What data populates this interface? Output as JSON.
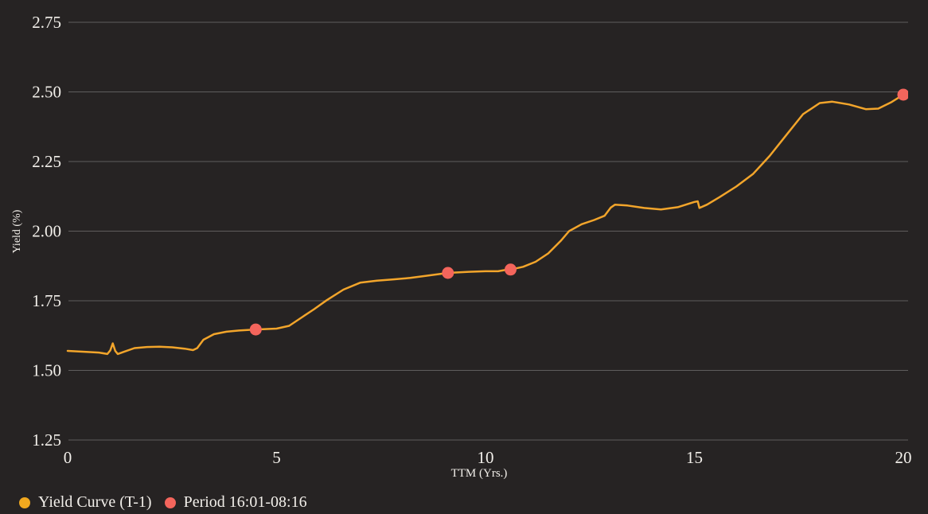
{
  "chart_data": {
    "type": "line",
    "title": "",
    "xlabel": "TTM (Yrs.)",
    "ylabel": "Yield (%)",
    "xlim": [
      0,
      20
    ],
    "ylim": [
      1.25,
      2.75
    ],
    "x_ticks": [
      "0",
      "5",
      "10",
      "15",
      "20"
    ],
    "y_ticks": [
      "1.25",
      "1.50",
      "1.75",
      "2.00",
      "2.25",
      "2.50",
      "2.75"
    ],
    "grid": "horizontal",
    "legend_position": "bottom-left",
    "background_color": "#262323",
    "gridline_color": "#8f8d8d",
    "text_color": "#f2efea",
    "series": [
      {
        "name": "Yield Curve (T-1)",
        "color": "#f2a52b",
        "points": [
          [
            0,
            1.57
          ],
          [
            0.4,
            1.567
          ],
          [
            0.75,
            1.564
          ],
          [
            0.95,
            1.559
          ],
          [
            1.02,
            1.572
          ],
          [
            1.08,
            1.597
          ],
          [
            1.14,
            1.57
          ],
          [
            1.2,
            1.559
          ],
          [
            1.35,
            1.567
          ],
          [
            1.6,
            1.58
          ],
          [
            1.9,
            1.584
          ],
          [
            2.2,
            1.585
          ],
          [
            2.5,
            1.583
          ],
          [
            2.8,
            1.578
          ],
          [
            3.0,
            1.573
          ],
          [
            3.1,
            1.58
          ],
          [
            3.25,
            1.61
          ],
          [
            3.5,
            1.63
          ],
          [
            3.8,
            1.639
          ],
          [
            4.1,
            1.643
          ],
          [
            4.5,
            1.647
          ],
          [
            5.0,
            1.65
          ],
          [
            5.3,
            1.66
          ],
          [
            5.6,
            1.69
          ],
          [
            5.9,
            1.72
          ],
          [
            6.2,
            1.752
          ],
          [
            6.6,
            1.79
          ],
          [
            7.0,
            1.815
          ],
          [
            7.4,
            1.822
          ],
          [
            7.8,
            1.827
          ],
          [
            8.2,
            1.832
          ],
          [
            8.6,
            1.84
          ],
          [
            9.1,
            1.85
          ],
          [
            9.6,
            1.854
          ],
          [
            10.0,
            1.856
          ],
          [
            10.3,
            1.856
          ],
          [
            10.45,
            1.86
          ],
          [
            10.6,
            1.862
          ],
          [
            10.9,
            1.872
          ],
          [
            11.2,
            1.89
          ],
          [
            11.5,
            1.92
          ],
          [
            11.8,
            1.965
          ],
          [
            12.0,
            2.0
          ],
          [
            12.3,
            2.025
          ],
          [
            12.6,
            2.04
          ],
          [
            12.85,
            2.055
          ],
          [
            13.0,
            2.085
          ],
          [
            13.1,
            2.095
          ],
          [
            13.4,
            2.092
          ],
          [
            13.8,
            2.083
          ],
          [
            14.2,
            2.078
          ],
          [
            14.6,
            2.086
          ],
          [
            15.0,
            2.105
          ],
          [
            15.08,
            2.107
          ],
          [
            15.12,
            2.083
          ],
          [
            15.3,
            2.095
          ],
          [
            15.6,
            2.122
          ],
          [
            16.0,
            2.16
          ],
          [
            16.4,
            2.205
          ],
          [
            16.8,
            2.27
          ],
          [
            17.2,
            2.345
          ],
          [
            17.6,
            2.42
          ],
          [
            18.0,
            2.46
          ],
          [
            18.3,
            2.465
          ],
          [
            18.7,
            2.455
          ],
          [
            19.1,
            2.438
          ],
          [
            19.4,
            2.44
          ],
          [
            19.7,
            2.462
          ],
          [
            20,
            2.49
          ]
        ]
      }
    ],
    "markers": [
      {
        "name": "Period 16:01-08:16",
        "color": "#f4655c",
        "points": [
          [
            4.5,
            1.647
          ],
          [
            9.1,
            1.85
          ],
          [
            10.6,
            1.862
          ],
          [
            20,
            2.49
          ]
        ]
      }
    ],
    "legend": [
      {
        "label": "Yield Curve (T-1)",
        "color": "#f0a81f",
        "marker": "circle"
      },
      {
        "label": "Period 16:01-08:16",
        "color": "#f4655c",
        "marker": "circle"
      }
    ]
  }
}
